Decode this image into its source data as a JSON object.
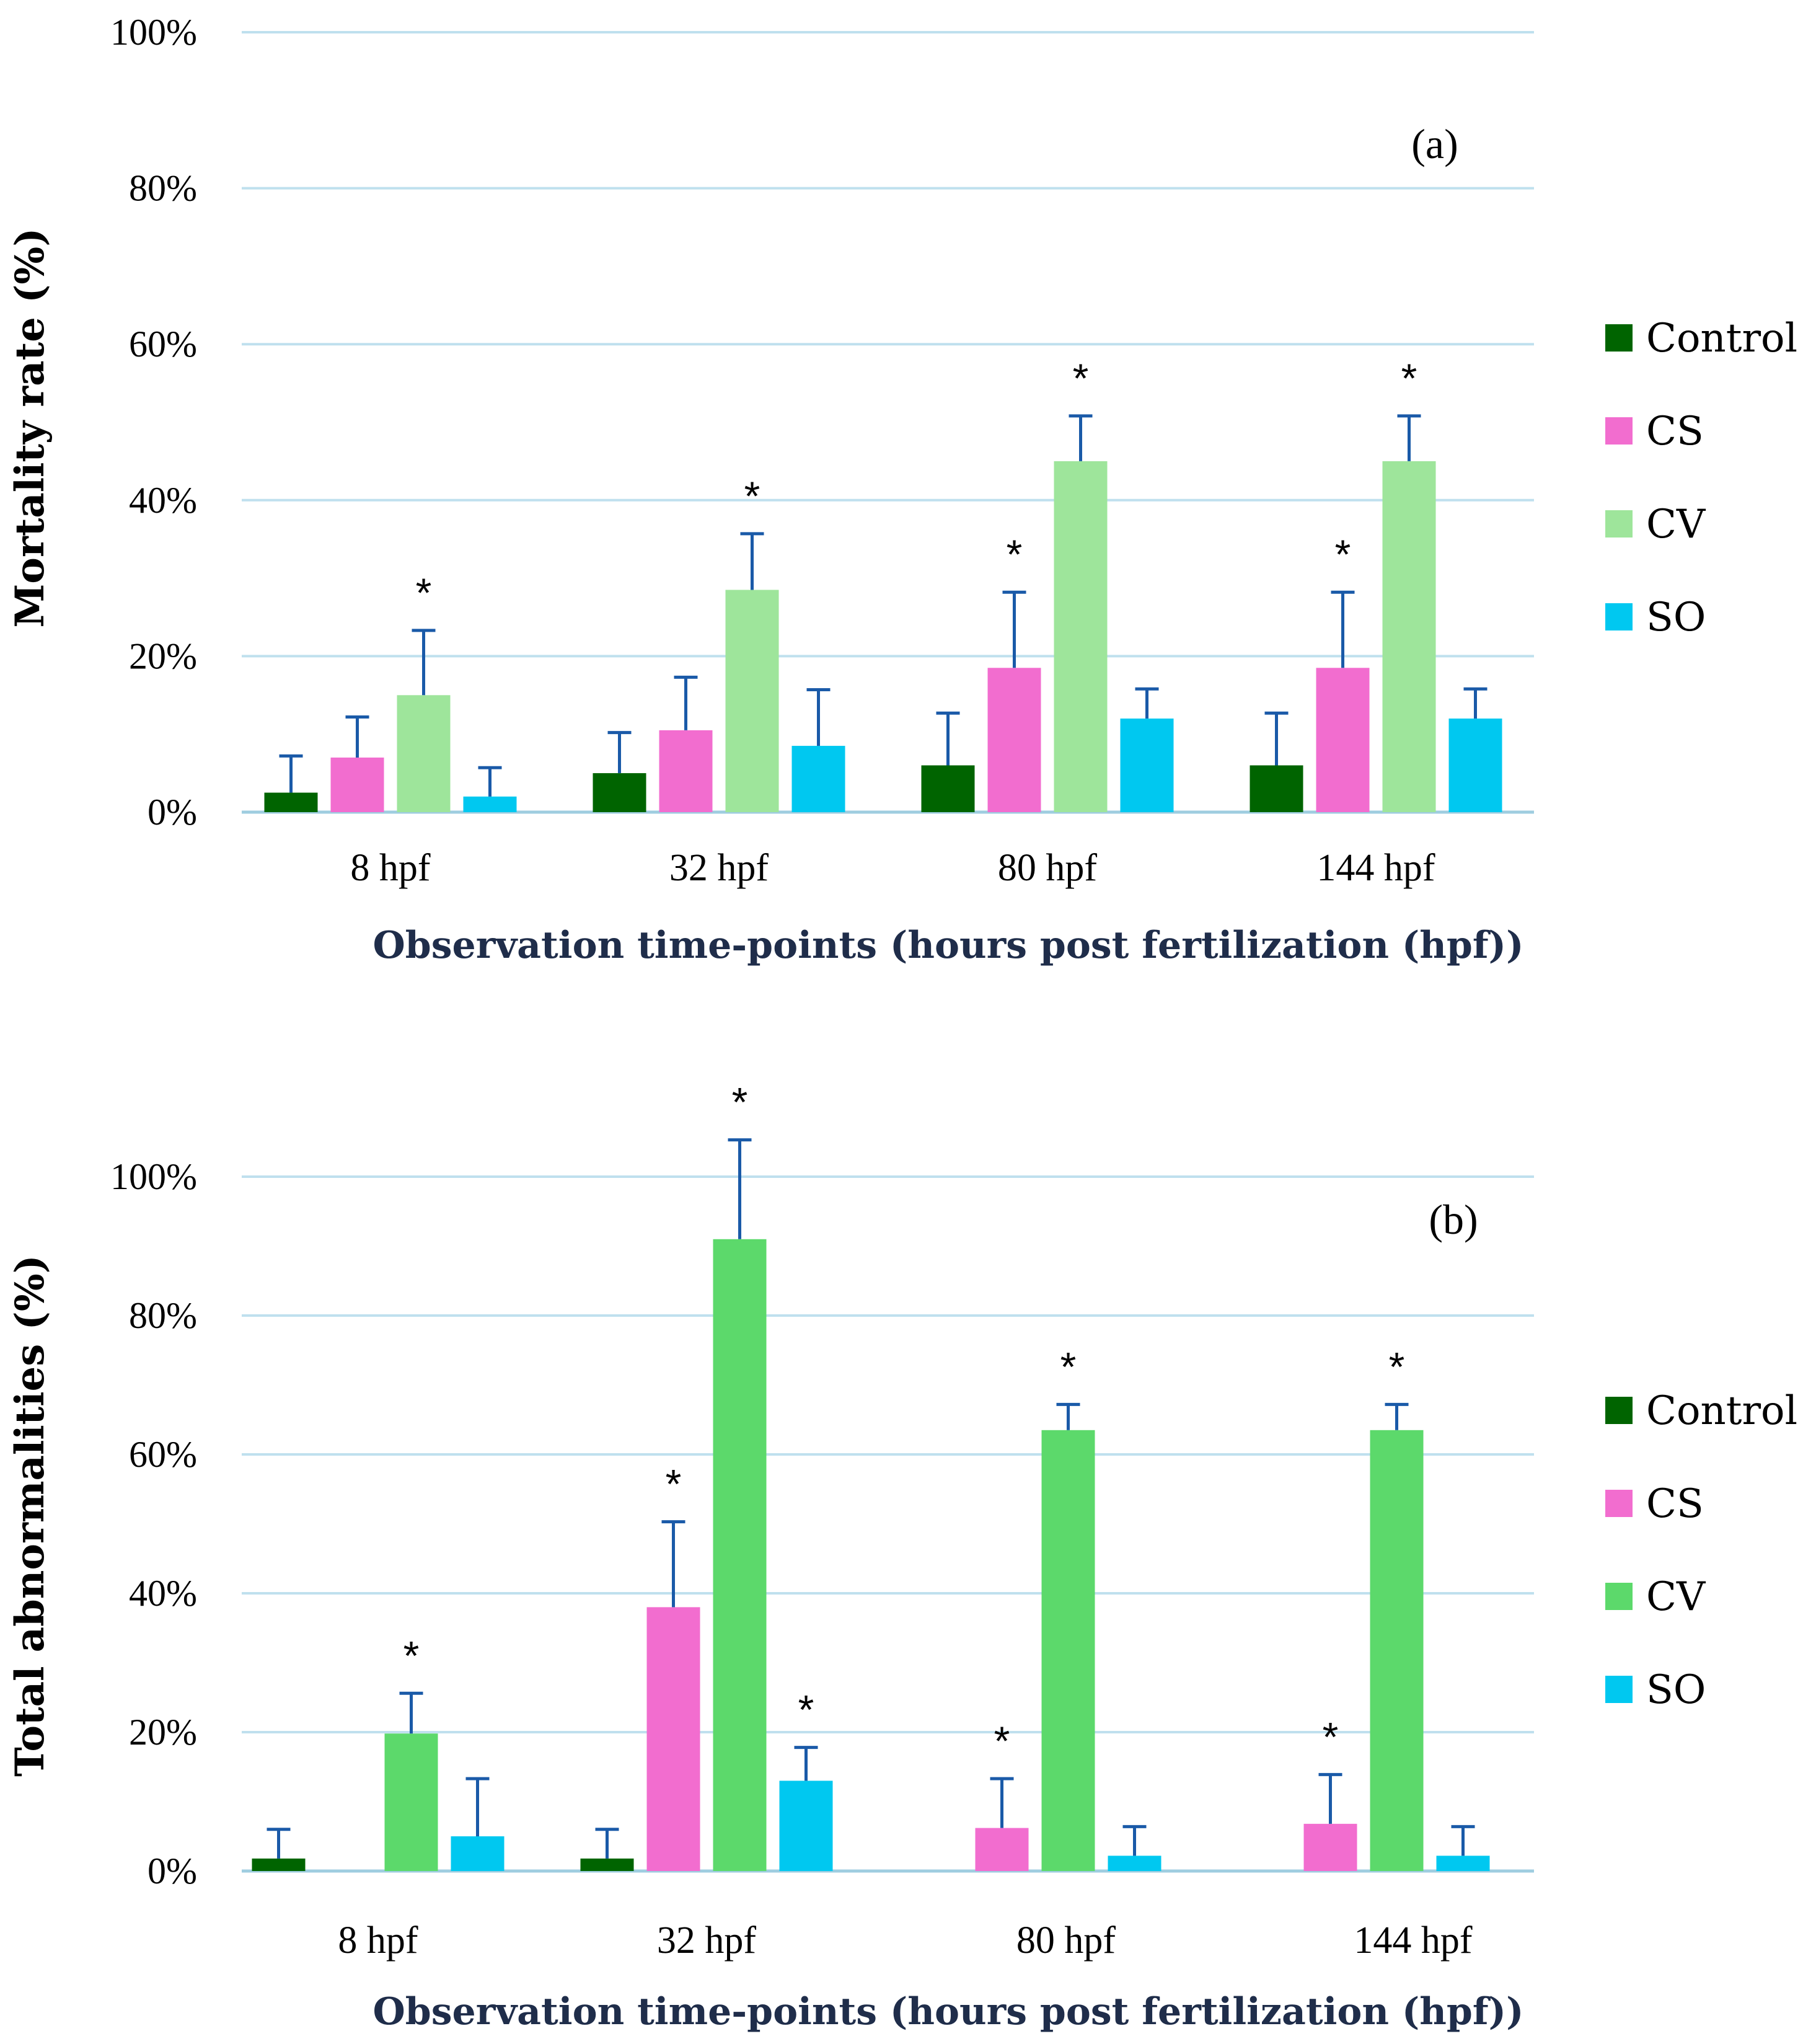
{
  "chart_data": [
    {
      "type": "bar",
      "panel_label": "(a)",
      "ylabel": "Mortality rate (%)",
      "xlabel": "Observation time-points (hours post fertilization (hpf))",
      "ylim": [
        0,
        100
      ],
      "ytick_labels": [
        "0%",
        "20%",
        "40%",
        "60%",
        "80%",
        "100%"
      ],
      "grid": true,
      "legend_position": "right",
      "categories": [
        "8 hpf",
        "32 hpf",
        "80 hpf",
        "144 hpf"
      ],
      "series": [
        {
          "name": "Control",
          "color": "#006400",
          "values": [
            2.5,
            5,
            6,
            6
          ],
          "errors": [
            4.7,
            5.2,
            6.7,
            6.7
          ],
          "significant": [
            false,
            false,
            false,
            false
          ]
        },
        {
          "name": "CS",
          "color": "#f26dcf",
          "values": [
            7,
            10.5,
            18.5,
            18.5
          ],
          "errors": [
            5.2,
            6.8,
            9.7,
            9.7
          ],
          "significant": [
            false,
            false,
            true,
            true
          ]
        },
        {
          "name": "CV",
          "color": "#9ee59b",
          "values": [
            15,
            28.5,
            45,
            45
          ],
          "errors": [
            8.3,
            7.2,
            5.8,
            5.8
          ],
          "significant": [
            true,
            true,
            true,
            true
          ]
        },
        {
          "name": "SO",
          "color": "#00c8f0",
          "values": [
            2,
            8.5,
            12,
            12
          ],
          "errors": [
            3.7,
            7.2,
            3.8,
            3.8
          ],
          "significant": [
            false,
            false,
            false,
            false
          ]
        }
      ],
      "significance_marker": "*"
    },
    {
      "type": "bar",
      "panel_label": "(b)",
      "ylabel": "Total abnormalities (%)",
      "xlabel": "Observation time-points (hours post fertilization (hpf))",
      "ylim": [
        0,
        100
      ],
      "ytick_labels": [
        "0%",
        "20%",
        "40%",
        "60%",
        "80%",
        "100%"
      ],
      "grid": true,
      "legend_position": "right",
      "categories": [
        "8 hpf",
        "32 hpf",
        "80 hpf",
        "144 hpf"
      ],
      "series": [
        {
          "name": "Control",
          "color": "#006400",
          "values": [
            1.8,
            1.8,
            0,
            0
          ],
          "errors": [
            4.2,
            4.2,
            0,
            0
          ],
          "significant": [
            false,
            false,
            false,
            false
          ]
        },
        {
          "name": "CS",
          "color": "#f26dcf",
          "values": [
            0,
            38,
            6.2,
            6.8
          ],
          "errors": [
            0,
            12.3,
            7.1,
            7.1
          ],
          "significant": [
            false,
            true,
            true,
            true
          ]
        },
        {
          "name": "CV",
          "color": "#5cd96b",
          "values": [
            19.8,
            91,
            63.5,
            63.5
          ],
          "errors": [
            5.8,
            14.3,
            3.7,
            3.7
          ],
          "significant": [
            true,
            true,
            true,
            true
          ]
        },
        {
          "name": "SO",
          "color": "#00c8f0",
          "values": [
            5,
            13,
            2.2,
            2.2
          ],
          "errors": [
            8.3,
            4.8,
            4.2,
            4.2
          ],
          "significant": [
            false,
            true,
            false,
            false
          ]
        }
      ],
      "significance_marker": "*"
    }
  ]
}
